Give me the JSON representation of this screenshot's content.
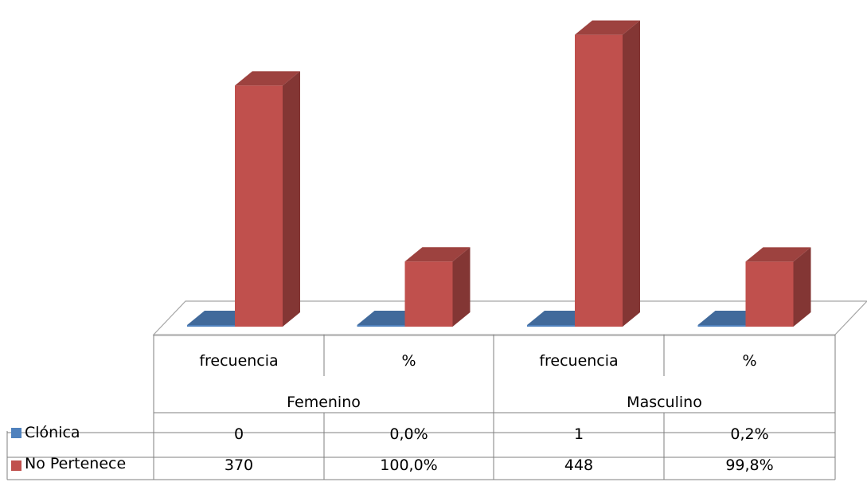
{
  "chart_data": {
    "type": "bar",
    "style": "3d-clustered-column-with-data-table",
    "groups": [
      {
        "label": "Femenino",
        "categories": [
          "frecuencia",
          "%"
        ]
      },
      {
        "label": "Masculino",
        "categories": [
          "frecuencia",
          "%"
        ]
      }
    ],
    "categories": [
      "frecuencia",
      "%",
      "frecuencia",
      "%"
    ],
    "series": [
      {
        "name": "Clónica",
        "color": "#4f81bd",
        "values": [
          0,
          0.0,
          1,
          0.2
        ],
        "labels": [
          "0",
          "0,0%",
          "1",
          "0,2%"
        ]
      },
      {
        "name": "No Pertenece",
        "color": "#c0504d",
        "values": [
          370,
          100.0,
          448,
          99.8
        ],
        "labels": [
          "370",
          "100,0%",
          "448",
          "99,8%"
        ]
      }
    ],
    "title": "",
    "xlabel": "",
    "ylabel": "",
    "ylim": [
      0,
      450
    ],
    "grid": false,
    "legend": "left-in-data-table"
  }
}
